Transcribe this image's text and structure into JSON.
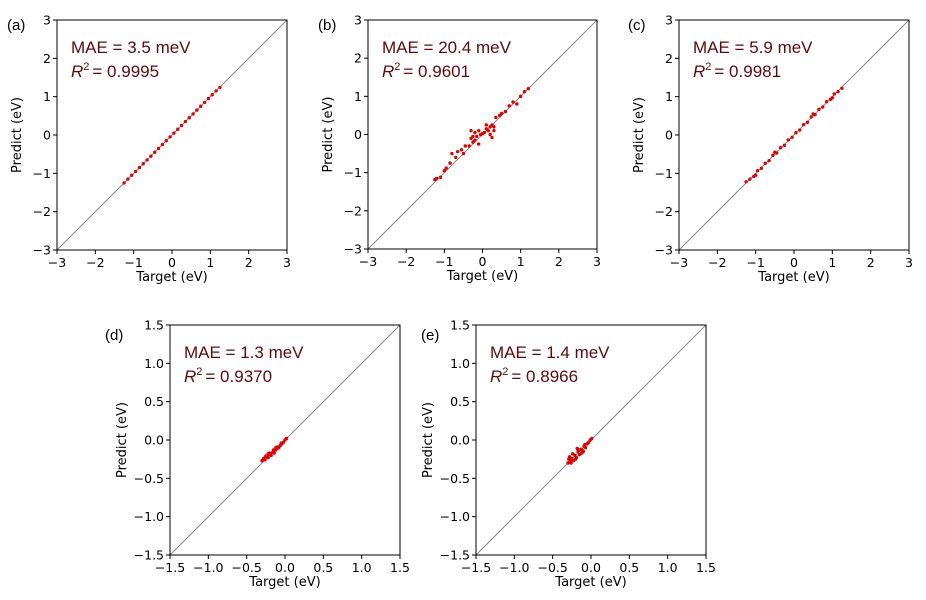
{
  "chart_data": [
    {
      "type": "scatter",
      "panel_label": "(a)",
      "xlabel": "Target (eV)",
      "ylabel": "Predict (eV)",
      "xlim": [
        -3,
        3
      ],
      "ylim": [
        -3,
        3
      ],
      "ticks": [
        -3,
        -2,
        -1,
        0,
        1,
        2,
        3
      ],
      "tick_labels": [
        "−3",
        "−2",
        "−1",
        "0",
        "1",
        "2",
        "3"
      ],
      "mae_text": "MAE = 3.5 meV",
      "r2_value": "= 0.9995",
      "diagonal": true,
      "point_color": "#e00000",
      "series": [
        {
          "name": "points",
          "x": [
            -1.25,
            -1.15,
            -1.05,
            -0.95,
            -0.85,
            -0.75,
            -0.65,
            -0.55,
            -0.45,
            -0.35,
            -0.25,
            -0.15,
            -0.05,
            0.05,
            0.15,
            0.25,
            0.35,
            0.45,
            0.55,
            0.65,
            0.75,
            0.85,
            0.95,
            1.05,
            1.15,
            1.25
          ],
          "y": [
            -1.25,
            -1.15,
            -1.05,
            -0.95,
            -0.85,
            -0.75,
            -0.65,
            -0.55,
            -0.45,
            -0.35,
            -0.25,
            -0.15,
            -0.05,
            0.05,
            0.15,
            0.25,
            0.35,
            0.45,
            0.55,
            0.65,
            0.75,
            0.85,
            0.95,
            1.05,
            1.15,
            1.24
          ]
        }
      ]
    },
    {
      "type": "scatter",
      "panel_label": "(b)",
      "xlabel": "Target (eV)",
      "ylabel": "Predict (eV)",
      "xlim": [
        -3,
        3
      ],
      "ylim": [
        -3,
        3
      ],
      "ticks": [
        -3,
        -2,
        -1,
        0,
        1,
        2,
        3
      ],
      "tick_labels": [
        "−3",
        "−2",
        "−1",
        "0",
        "1",
        "2",
        "3"
      ],
      "mae_text": "MAE = 20.4 meV",
      "r2_value": "= 0.9601",
      "diagonal": true,
      "point_color": "#e00000",
      "series": [
        {
          "name": "points",
          "x": [
            -1.25,
            -1.2,
            -1.1,
            -1.0,
            -0.95,
            -0.85,
            -0.8,
            -0.7,
            -0.65,
            -0.55,
            -0.5,
            -0.45,
            -0.35,
            -0.3,
            -0.25,
            -0.2,
            -0.15,
            -0.1,
            -0.05,
            0.0,
            0.05,
            0.1,
            0.15,
            0.2,
            0.25,
            0.3,
            0.35,
            0.45,
            0.5,
            0.6,
            0.7,
            0.8,
            0.9,
            1.0,
            1.1,
            1.2,
            -0.3,
            -0.2,
            0.2,
            0.3,
            -0.25,
            0.25,
            0.1,
            -0.1
          ],
          "y": [
            -1.18,
            -1.15,
            -1.12,
            -0.95,
            -0.88,
            -0.75,
            -0.5,
            -0.6,
            -0.45,
            -0.4,
            -0.5,
            -0.3,
            -0.3,
            -0.1,
            -0.2,
            0.05,
            -0.05,
            0.1,
            0.0,
            0.02,
            0.05,
            0.15,
            0.1,
            0.2,
            0.25,
            0.2,
            0.45,
            0.5,
            0.55,
            0.6,
            0.75,
            0.85,
            0.8,
            1.0,
            1.12,
            1.2,
            0.1,
            -0.15,
            0.0,
            0.1,
            -0.05,
            -0.08,
            0.25,
            -0.25
          ]
        }
      ]
    },
    {
      "type": "scatter",
      "panel_label": "(c)",
      "xlabel": "Target (eV)",
      "ylabel": "Predict (eV)",
      "xlim": [
        -3,
        3
      ],
      "ylim": [
        -3,
        3
      ],
      "ticks": [
        -3,
        -2,
        -1,
        0,
        1,
        2,
        3
      ],
      "tick_labels": [
        "−3",
        "−2",
        "−1",
        "0",
        "1",
        "2",
        "3"
      ],
      "mae_text": "MAE = 5.9 meV",
      "r2_value": "= 0.9981",
      "diagonal": true,
      "point_color": "#e00000",
      "series": [
        {
          "name": "points",
          "x": [
            -1.25,
            -1.15,
            -1.05,
            -0.95,
            -0.85,
            -0.75,
            -0.65,
            -0.55,
            -0.45,
            -0.35,
            -0.25,
            -0.15,
            -0.05,
            0.05,
            0.15,
            0.25,
            0.35,
            0.45,
            0.55,
            0.65,
            0.75,
            0.85,
            0.95,
            1.05,
            1.15,
            1.25,
            -1.0,
            -0.5,
            0.5,
            1.0
          ],
          "y": [
            -1.22,
            -1.15,
            -1.08,
            -0.93,
            -0.87,
            -0.74,
            -0.67,
            -0.53,
            -0.47,
            -0.33,
            -0.27,
            -0.13,
            -0.06,
            0.06,
            0.13,
            0.27,
            0.33,
            0.47,
            0.53,
            0.67,
            0.73,
            0.87,
            0.93,
            1.07,
            1.13,
            1.22,
            -1.05,
            -0.45,
            0.55,
            0.97
          ]
        }
      ]
    },
    {
      "type": "scatter",
      "panel_label": "(d)",
      "xlabel": "Target (eV)",
      "ylabel": "Predict (eV)",
      "xlim": [
        -1.5,
        1.5
      ],
      "ylim": [
        -1.5,
        1.5
      ],
      "ticks": [
        -1.5,
        -1.0,
        -0.5,
        0.0,
        0.5,
        1.0,
        1.5
      ],
      "tick_labels": [
        "−1.5",
        "−1.0",
        "−0.5",
        "0.0",
        "0.5",
        "1.0",
        "1.5"
      ],
      "mae_text": "MAE = 1.3 meV",
      "r2_value": "= 0.9370",
      "diagonal": true,
      "point_color": "#e00000",
      "series": [
        {
          "name": "points",
          "x": [
            -0.3,
            -0.28,
            -0.26,
            -0.24,
            -0.22,
            -0.2,
            -0.18,
            -0.16,
            -0.14,
            -0.12,
            -0.1,
            -0.08,
            -0.06,
            -0.04,
            -0.02,
            0.0,
            0.02,
            -0.25,
            -0.2,
            -0.15,
            -0.1,
            -0.05,
            -0.22,
            -0.12
          ],
          "y": [
            -0.27,
            -0.24,
            -0.26,
            -0.22,
            -0.23,
            -0.19,
            -0.2,
            -0.16,
            -0.17,
            -0.13,
            -0.11,
            -0.1,
            -0.07,
            -0.05,
            -0.03,
            0.0,
            0.02,
            -0.21,
            -0.17,
            -0.13,
            -0.09,
            -0.04,
            -0.18,
            -0.1
          ]
        }
      ]
    },
    {
      "type": "scatter",
      "panel_label": "(e)",
      "xlabel": "Target (eV)",
      "ylabel": "Predict (eV)",
      "xlim": [
        -1.5,
        1.5
      ],
      "ylim": [
        -1.5,
        1.5
      ],
      "ticks": [
        -1.5,
        -1.0,
        -0.5,
        0.0,
        0.5,
        1.0,
        1.5
      ],
      "tick_labels": [
        "−1.5",
        "−1.0",
        "−0.5",
        "0.0",
        "0.5",
        "1.0",
        "1.5"
      ],
      "mae_text": "MAE = 1.4 meV",
      "r2_value": "= 0.8966",
      "diagonal": true,
      "point_color": "#e00000",
      "series": [
        {
          "name": "points",
          "x": [
            -0.3,
            -0.29,
            -0.27,
            -0.25,
            -0.23,
            -0.21,
            -0.19,
            -0.17,
            -0.15,
            -0.13,
            -0.11,
            -0.09,
            -0.07,
            -0.05,
            -0.03,
            -0.01,
            0.01,
            -0.28,
            -0.24,
            -0.2,
            -0.16,
            -0.12,
            -0.08,
            -0.26,
            -0.18,
            -0.1
          ],
          "y": [
            -0.3,
            -0.25,
            -0.28,
            -0.24,
            -0.27,
            -0.2,
            -0.23,
            -0.15,
            -0.19,
            -0.12,
            -0.14,
            -0.08,
            -0.1,
            -0.05,
            -0.03,
            0.0,
            0.02,
            -0.22,
            -0.18,
            -0.25,
            -0.13,
            -0.17,
            -0.06,
            -0.3,
            -0.11,
            -0.15
          ]
        }
      ]
    }
  ]
}
